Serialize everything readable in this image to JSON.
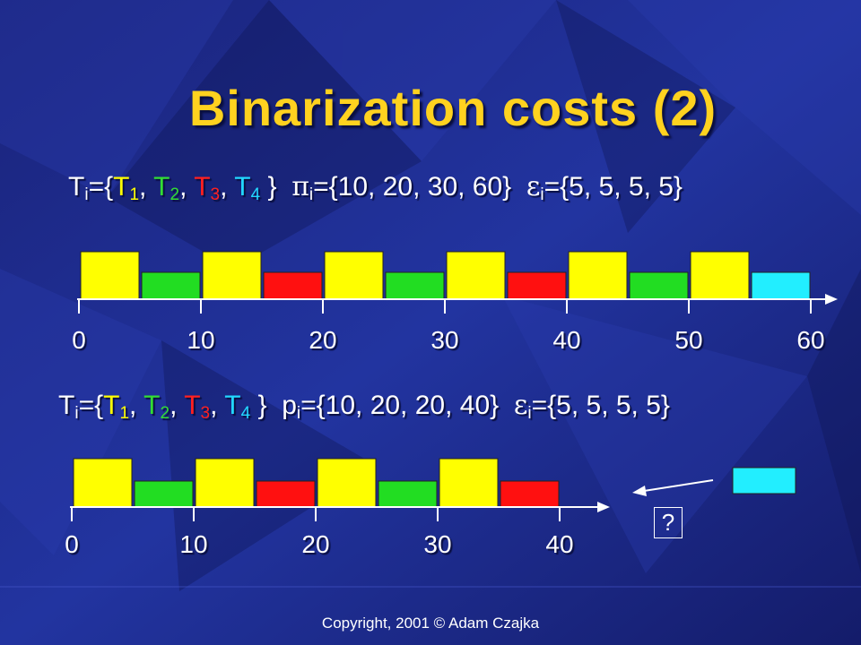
{
  "slide": {
    "title": "Binarization costs (2)",
    "copyright": "Copyright, 2001 © Adam Czajka",
    "question_mark": "?"
  },
  "formula1": {
    "t_prefix": "T",
    "t_sub": "i",
    "t_eq": "={",
    "items": [
      {
        "t": "T",
        "sub": "1",
        "color": "#ffff00"
      },
      {
        "t": "T",
        "sub": "2",
        "color": "#33dd33"
      },
      {
        "t": "T",
        "sub": "3",
        "color": "#ff2020"
      },
      {
        "t": "T",
        "sub": "4",
        "color": "#22d8ff"
      }
    ],
    "close": " }",
    "pi_symbol": "π",
    "pi_sub": "i",
    "pi_values": "={10, 20, 30, 60}",
    "eps_symbol": "ε",
    "eps_sub": "i",
    "eps_values": "={5, 5, 5, 5}"
  },
  "formula2": {
    "t_prefix": "T",
    "t_sub": "i",
    "t_eq": "={",
    "items": [
      {
        "t": "T",
        "sub": "1",
        "color": "#ffff00"
      },
      {
        "t": "T",
        "sub": "2",
        "color": "#33dd33"
      },
      {
        "t": "T",
        "sub": "3",
        "color": "#ff2020"
      },
      {
        "t": "T",
        "sub": "4",
        "color": "#22d8ff"
      }
    ],
    "close": " }",
    "p_symbol": "p",
    "p_sub": "i",
    "p_values": "={10, 20, 20, 40}",
    "eps_symbol": "ε",
    "eps_sub": "i",
    "eps_values": "={5, 5, 5, 5}"
  },
  "timeline1": {
    "ticks": [
      "0",
      "10",
      "20",
      "30",
      "40",
      "50",
      "60"
    ],
    "blocks": [
      "T1",
      "T2",
      "T1",
      "T3",
      "T1",
      "T2",
      "T1",
      "T3",
      "T1",
      "T2",
      "T1",
      "T4"
    ]
  },
  "timeline2": {
    "ticks": [
      "0",
      "10",
      "20",
      "30",
      "40"
    ],
    "blocks": [
      "T1",
      "T2",
      "T1",
      "T3",
      "T1",
      "T2",
      "T1",
      "T3"
    ],
    "pending_block": "T4"
  },
  "colors": {
    "T1": "#ffff00",
    "T2": "#22dd22",
    "T3": "#ff1010",
    "T4": "#22eeff",
    "title": "#ffd21f",
    "background": "#1c2a8a"
  }
}
